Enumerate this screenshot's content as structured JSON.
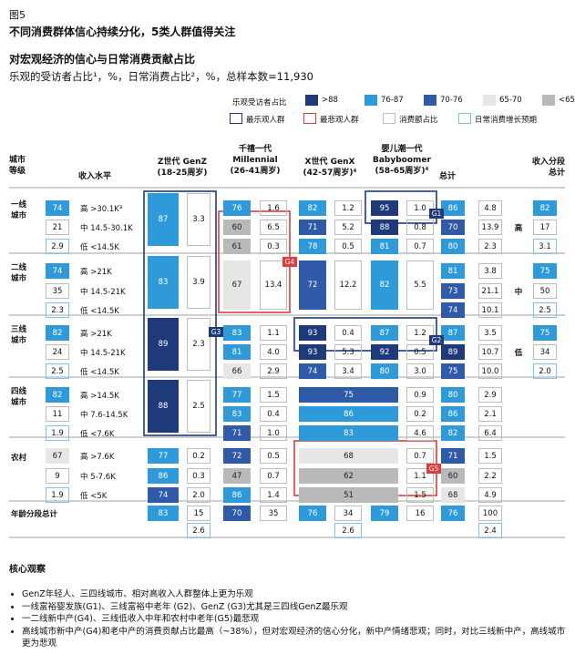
{
  "figure_label": "图5",
  "title": "不同消费群体信心持续分化，5类人群值得关注",
  "subtitle": "对宏观经济的信心与日常消费贡献占比",
  "subtitle2": "乐观的受访者占比¹，%，日常消费占比²，%，总样本数=11,930",
  "legend": {
    "optimism_label": "乐观受访者占比",
    "scale": [
      {
        "label": ">88",
        "color": "#1f3a7a"
      },
      {
        "label": "76-87",
        "color": "#2f9ad9"
      },
      {
        "label": "70-76",
        "color": "#2e5aa8"
      },
      {
        "label": "65-70",
        "color": "#e6e6e6"
      },
      {
        "label": "<65",
        "color": "#b9b9b9"
      }
    ],
    "boxes": [
      {
        "label": "最乐观人群",
        "color": "#1f3a7a"
      },
      {
        "label": "最悲观人群",
        "color": "#e03c3c"
      },
      {
        "label": "消费额占比",
        "color": "#bdbdbd"
      },
      {
        "label": "日常消费增长预期",
        "color": "#7fc3e8"
      }
    ]
  },
  "headers": {
    "city_tier": "城市\n等级",
    "income": "收入水平",
    "genz": "Z世代 GenZ\n(18-25周岁)",
    "millennial": "千禧一代\nMillennial\n(26-41周岁)",
    "genx": "X世代 GenX\n(42-57周岁)⁴",
    "boomer": "婴儿潮一代\nBabyboomer\n(58-65周岁)⁴",
    "total": "总计",
    "income_total": "收入分段\n总计"
  },
  "income_totals": [
    {
      "label": "高",
      "values": [
        "82",
        "17",
        "3.1"
      ]
    },
    {
      "label": "中",
      "values": [
        "75",
        "50",
        "2.5"
      ]
    },
    {
      "label": "低",
      "values": [
        "75",
        "34",
        "2.0"
      ]
    }
  ],
  "tier_labels": [
    "一线\n城市",
    "二线\n城市",
    "三线\n城市",
    "四线\n城市",
    "农村"
  ],
  "row_labels": [
    "高 >30.1K³",
    "中 14.5-30.1K",
    "低 <14.5K",
    "高 >21K",
    "中 14.5-21K",
    "低 <14.5K",
    "高 >21K",
    "中 14.5-21K",
    "低 <14.5K",
    "高 >14.5K",
    "中 7.6-14.5K",
    "低 <7.6K",
    "高 >7.6K",
    "中 5-7.6K",
    "低 <5K"
  ],
  "tier_totals": [
    [
      "74",
      "21",
      "2.9"
    ],
    [
      "74",
      "35",
      "2.3"
    ],
    [
      "82",
      "24",
      "2.5"
    ],
    [
      "82",
      "11",
      "1.9"
    ],
    [
      "67",
      "9",
      "1.9"
    ]
  ],
  "genz": [
    {
      "optimism": "87",
      "share": "3.3"
    },
    {
      "optimism": "83",
      "share": "3.9"
    },
    {
      "optimism": "89",
      "share": "2.3"
    },
    {
      "optimism": "88",
      "share": "2.5"
    }
  ],
  "genz_rural": [
    [
      "77",
      "0.2"
    ],
    [
      "86",
      "0.3"
    ],
    [
      "74",
      "2.0"
    ]
  ],
  "millennial": [
    [
      "76",
      "1.6"
    ],
    [
      "60",
      "6.5"
    ],
    [
      "61",
      "0.3"
    ],
    [
      "67",
      "13.4"
    ],
    [
      "83",
      "1.1"
    ],
    [
      "81",
      "4.0"
    ],
    [
      "66",
      "2.9"
    ],
    [
      "77",
      "1.5"
    ],
    [
      "83",
      "0.4"
    ],
    [
      "71",
      "1.0"
    ],
    [
      "72",
      "0.5"
    ],
    [
      "47",
      "0.7"
    ],
    [
      "86",
      "1.4"
    ]
  ],
  "genx": [
    [
      "82",
      "1.2"
    ],
    [
      "71",
      "5.2"
    ],
    [
      "78",
      "0.5"
    ],
    [
      "72",
      "12.2"
    ],
    [
      "93",
      "0.4"
    ],
    [
      "93",
      "5.3"
    ],
    [
      "74",
      "3.4"
    ]
  ],
  "boomer": [
    [
      "95",
      "1.0"
    ],
    [
      "88",
      "0.8"
    ],
    [
      "81",
      "0.7"
    ],
    [
      "82",
      "5.5"
    ],
    [
      "87",
      "1.2"
    ],
    [
      "92",
      "0.5"
    ],
    [
      "80",
      "3.0"
    ]
  ],
  "genx_boomer_merged": [
    [
      "75",
      "0.9"
    ],
    [
      "86",
      "0.2"
    ],
    [
      "83",
      "4.6"
    ],
    [
      "68",
      "0.7"
    ],
    [
      "62",
      "1.1"
    ],
    [
      "51",
      "1.5"
    ]
  ],
  "totals": [
    [
      "86",
      "4.8"
    ],
    [
      "70",
      "13.9"
    ],
    [
      "80",
      "2.3"
    ],
    [
      "81",
      "3.8"
    ],
    [
      "73",
      "21.1"
    ],
    [
      "74",
      "10.1"
    ],
    [
      "87",
      "3.5"
    ],
    [
      "89",
      "10.7"
    ],
    [
      "75",
      "10.0"
    ],
    [
      "80",
      "2.9"
    ],
    [
      "86",
      "2.1"
    ],
    [
      "82",
      "6.4"
    ],
    [
      "71",
      "1.5"
    ],
    [
      "60",
      "2.2"
    ],
    [
      "68",
      "4.9"
    ]
  ],
  "age_total_label": "年龄分段总计",
  "age_totals": {
    "genz": [
      "83",
      "15",
      "2.6"
    ],
    "millennial": [
      "70",
      "35"
    ],
    "genx": [
      "76",
      "34",
      "2.6"
    ],
    "boomer": [
      "79",
      "16"
    ],
    "total": [
      "76",
      "100",
      "2.4"
    ]
  },
  "group_tags": [
    "G1",
    "G2",
    "G3",
    "G4",
    "G5"
  ],
  "observations_title": "核心观察",
  "observations": [
    "GenZ年轻人、三四线城市、相对高收入人群整体上更为乐观",
    "一线富裕婴发族(G1)、三线富裕中老年 (G2)、GenZ (G3)尤其是三四线GenZ最乐观",
    "一二线新中产(G4)、三线低收入中年和农村中老年(G5)最悲观",
    "高线城市新中产(G4)和老中产的消费贡献占比最高（~38%），但对宏观经济的信心分化，新中产情绪悲观；同时，对比三线新中产，高线城市更为悲观"
  ]
}
